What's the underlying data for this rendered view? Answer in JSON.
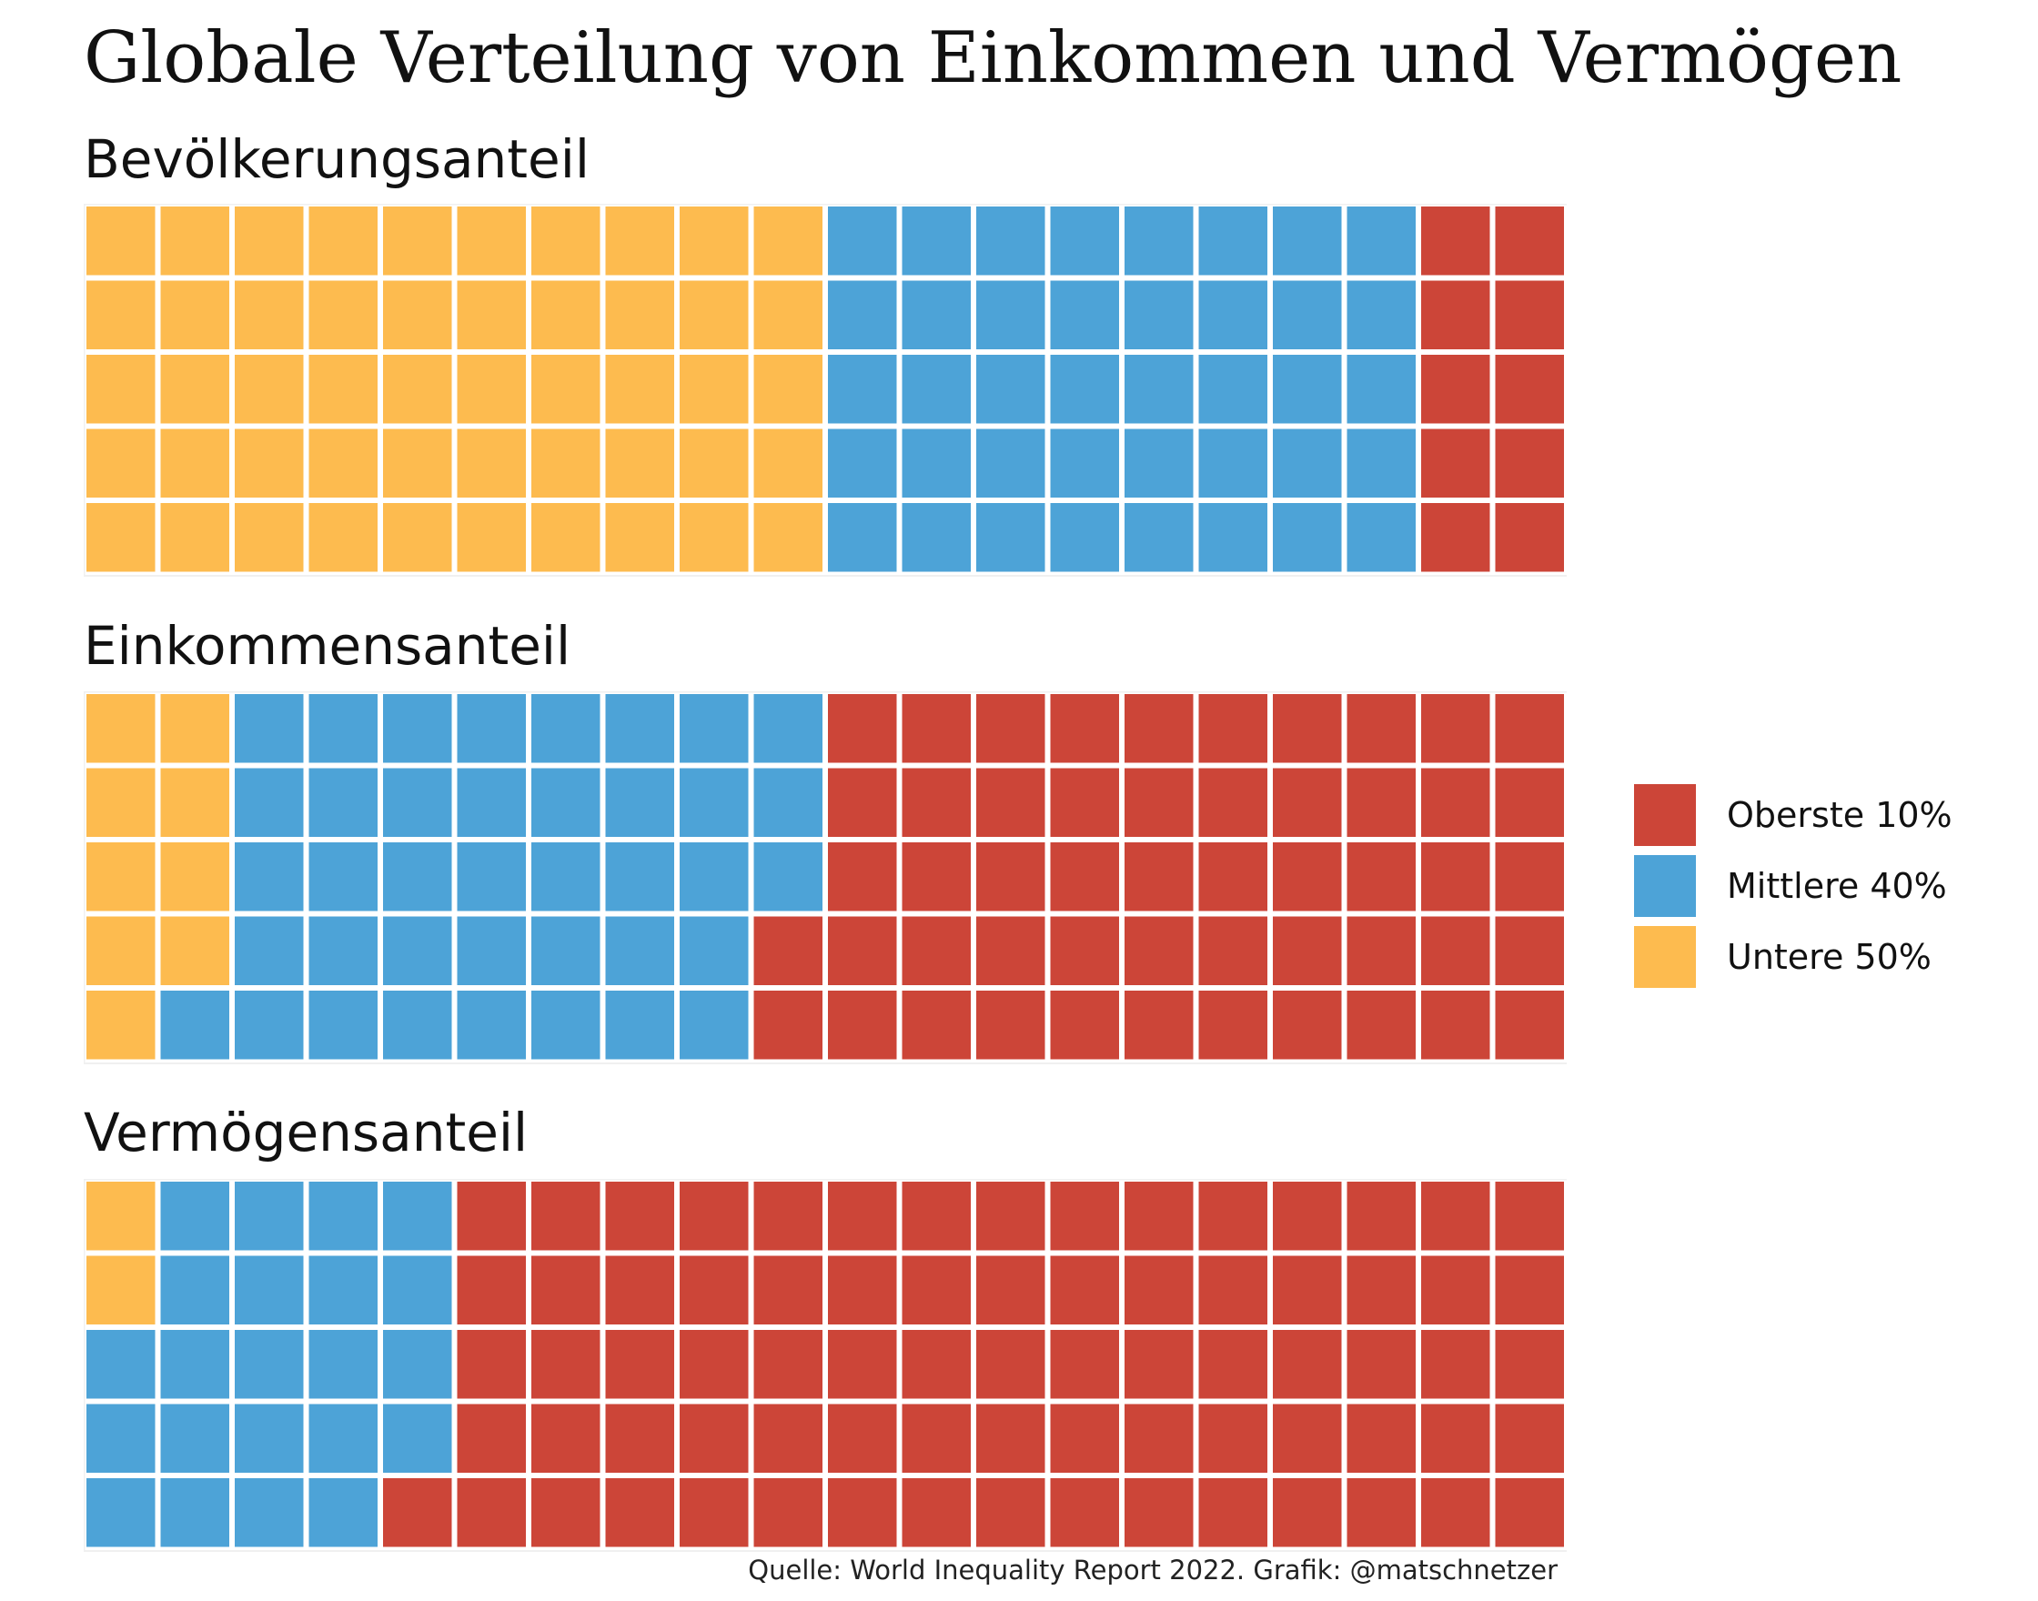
{
  "title": "Globale Verteilung von Einkommen und Vermögen",
  "caption": "Quelle: World Inequality Report 2022. Grafik: @matschnetzer",
  "colors": {
    "top10": "#cc4538",
    "middle40": "#4da3d7",
    "bottom50": "#fdbb4f"
  },
  "legend": [
    {
      "key": "top10",
      "label": "Oberste 10%"
    },
    {
      "key": "middle40",
      "label": "Mittlere 40%"
    },
    {
      "key": "bottom50",
      "label": "Untere 50%"
    }
  ],
  "chart_data": [
    {
      "type": "waffle",
      "title": "Bevölkerungsanteil",
      "columns": 20,
      "rows": 5,
      "order": [
        "bottom50",
        "middle40",
        "top10"
      ],
      "values": {
        "bottom50": 50,
        "middle40": 40,
        "top10": 10
      }
    },
    {
      "type": "waffle",
      "title": "Einkommensanteil",
      "columns": 20,
      "rows": 5,
      "order": [
        "bottom50",
        "middle40",
        "top10"
      ],
      "values": {
        "bottom50": 9,
        "middle40": 39,
        "top10": 52
      }
    },
    {
      "type": "waffle",
      "title": "Vermögensanteil",
      "columns": 20,
      "rows": 5,
      "order": [
        "bottom50",
        "middle40",
        "top10"
      ],
      "values": {
        "bottom50": 2,
        "middle40": 22,
        "top10": 76
      }
    }
  ]
}
